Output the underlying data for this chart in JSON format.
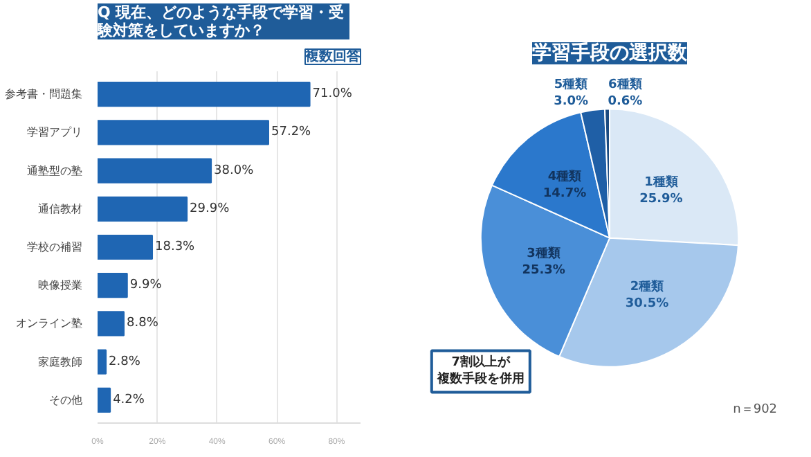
{
  "chart_data": [
    {
      "type": "bar",
      "orientation": "horizontal",
      "title": "現在、どのような手段で学習・受験対策をしていますか？",
      "subtitle": "複数回答",
      "annotations": [
        "Q"
      ],
      "categories": [
        "参考書・問題集",
        "学習アプリ",
        "通塾型の塾",
        "通信教材",
        "学校の補習",
        "映像授業",
        "オンライン塾",
        "家庭教師",
        "その他"
      ],
      "values": [
        71.0,
        57.2,
        38.0,
        29.9,
        18.3,
        9.9,
        8.8,
        2.8,
        4.2
      ],
      "value_labels": [
        "71.0%",
        "57.2%",
        "38.0%",
        "29.9%",
        "18.3%",
        "9.9%",
        "8.8%",
        "2.8%",
        "4.2%"
      ],
      "color": "#1f66b3",
      "xlim": [
        0,
        88
      ],
      "xticks": [
        {
          "value": 0,
          "label": "0%"
        },
        {
          "value": 20,
          "label": "20%"
        },
        {
          "value": 40,
          "label": "40%"
        },
        {
          "value": 60,
          "label": "60%"
        },
        {
          "value": 80,
          "label": "80%"
        }
      ],
      "grid": "x"
    },
    {
      "type": "pie",
      "title": "学習手段の選択数",
      "annotations": [
        "7割以上が複数手段を併用",
        "n＝902"
      ],
      "categories": [
        "1種類",
        "2種類",
        "3種類",
        "4種類",
        "5種類",
        "6種類"
      ],
      "values": [
        25.9,
        30.5,
        25.3,
        14.7,
        3.0,
        0.6
      ],
      "value_labels": [
        "25.9%",
        "30.5%",
        "25.3%",
        "14.7%",
        "3.0%",
        "0.6%"
      ],
      "colors": [
        "#dae8f6",
        "#a6c8ec",
        "#4a8fd8",
        "#2b78cc",
        "#1f5fa6",
        "#1a4a80"
      ]
    }
  ]
}
